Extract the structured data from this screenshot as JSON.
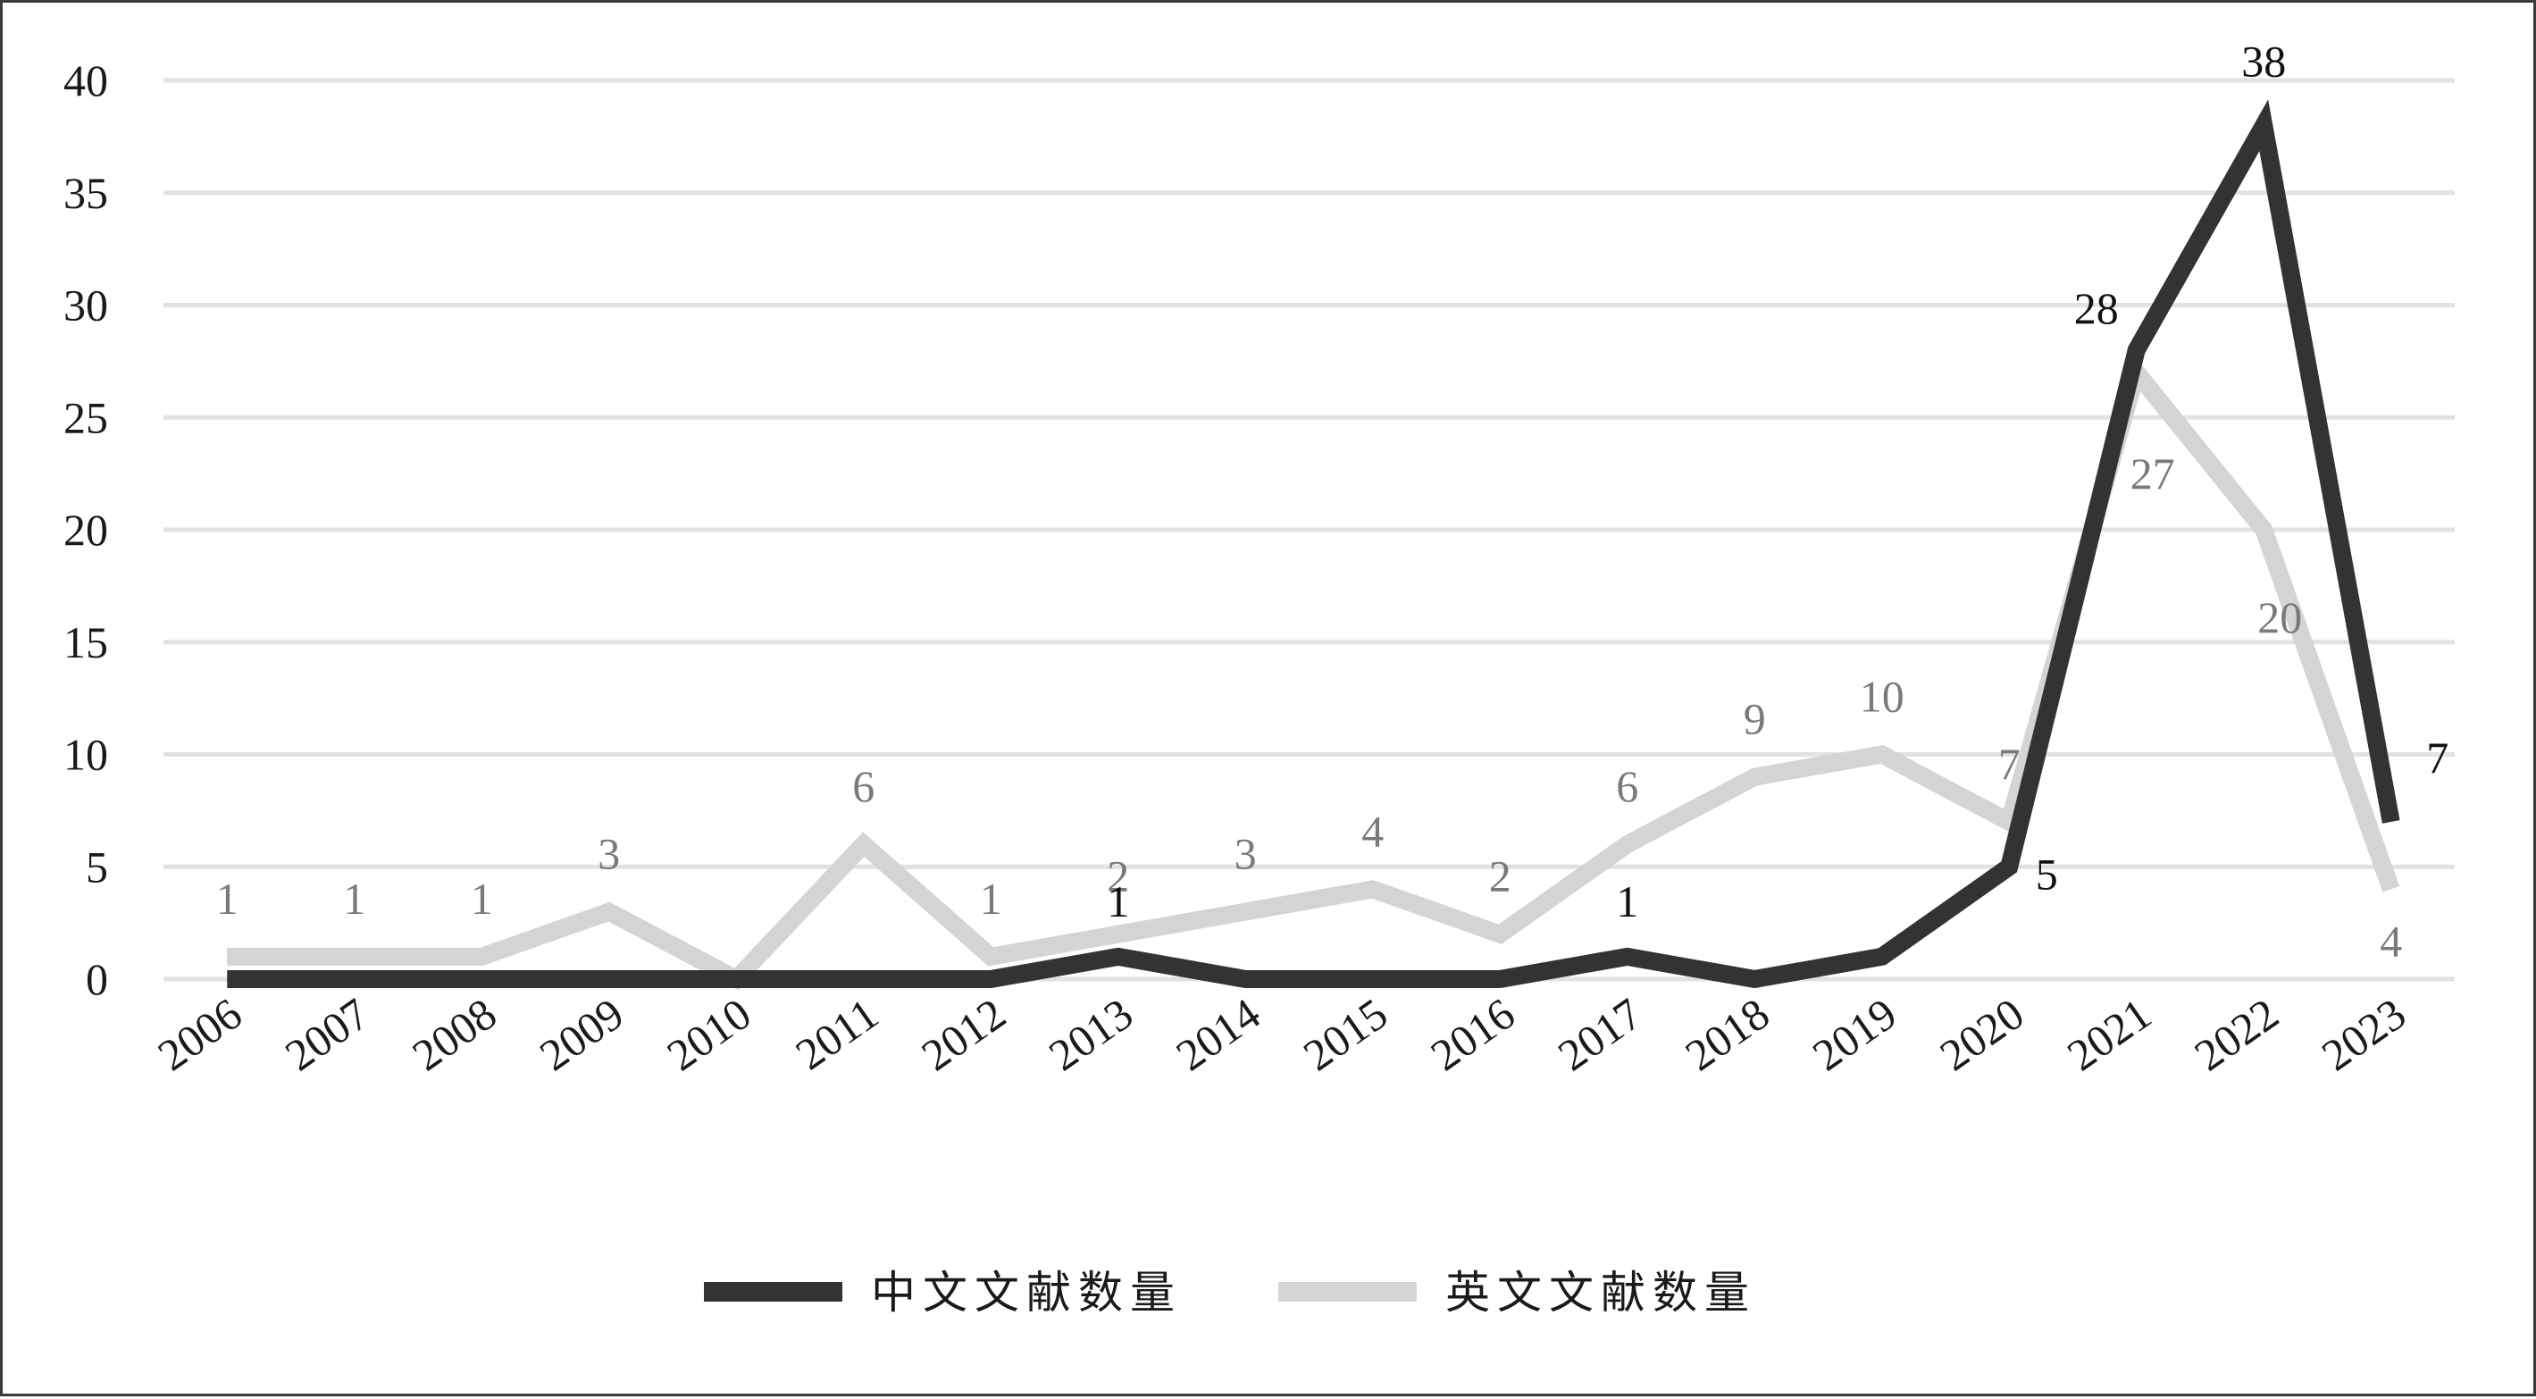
{
  "chart_data": {
    "type": "line",
    "categories": [
      "2006",
      "2007",
      "2008",
      "2009",
      "2010",
      "2011",
      "2012",
      "2013",
      "2014",
      "2015",
      "2016",
      "2017",
      "2018",
      "2019",
      "2020",
      "2021",
      "2022",
      "2023"
    ],
    "series": [
      {
        "name": "中文文献数量",
        "color": "#333333",
        "values": [
          0,
          0,
          0,
          0,
          0,
          0,
          0,
          1,
          0,
          0,
          0,
          1,
          0,
          1,
          5,
          28,
          38,
          7
        ],
        "labels": {
          "7": "1",
          "11": "1",
          "14": "5",
          "15": "28",
          "16": "38",
          "17": "7"
        }
      },
      {
        "name": "英文文献数量",
        "color": "#d4d4d4",
        "values": [
          1,
          1,
          1,
          3,
          0,
          6,
          1,
          2,
          3,
          4,
          2,
          6,
          9,
          10,
          7,
          27,
          20,
          4
        ],
        "labels": {
          "0": "1",
          "1": "1",
          "2": "1",
          "3": "3",
          "5": "6",
          "6": "1",
          "7": "2",
          "8": "3",
          "9": "4",
          "10": "2",
          "11": "6",
          "12": "9",
          "13": "10",
          "14": "7",
          "15": "27",
          "16": "20",
          "17": "4"
        }
      }
    ],
    "yticks": [
      "0",
      "5",
      "10",
      "15",
      "20",
      "25",
      "30",
      "35",
      "40"
    ],
    "ylim": [
      0,
      40
    ],
    "grid": true,
    "legend": "bottom"
  }
}
